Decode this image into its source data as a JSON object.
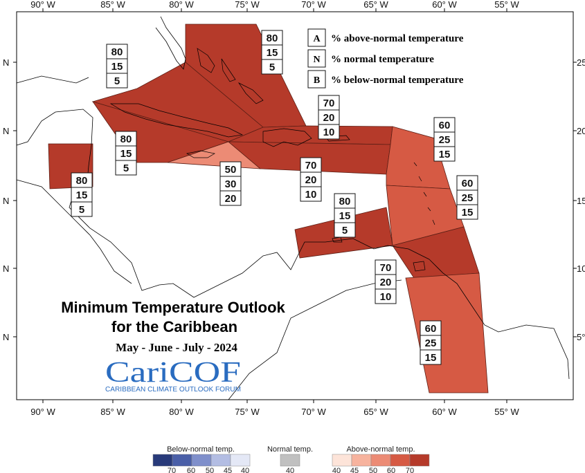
{
  "map": {
    "lon_ticks": [
      "90° W",
      "85° W",
      "80° W",
      "75° W",
      "70° W",
      "65° W",
      "60° W",
      "55° W"
    ],
    "lat_ticks_left": [
      "N",
      "N",
      "N",
      "N",
      "N"
    ],
    "lat_ticks_right": [
      "25°",
      "20°",
      "15°",
      "10°",
      "5°"
    ]
  },
  "legend_key": [
    {
      "key": "A",
      "text": "% above-normal temperature"
    },
    {
      "key": "N",
      "text": "% normal temperature"
    },
    {
      "key": "B",
      "text": "% below-normal temperature"
    }
  ],
  "regions": [
    {
      "name": "bahamas",
      "probs": [
        "80",
        "15",
        "5"
      ],
      "fill": "#b53a2a"
    },
    {
      "name": "cuba",
      "probs": [
        "80",
        "15",
        "5"
      ],
      "fill": "#b53a2a"
    },
    {
      "name": "cayman",
      "probs": [
        "80",
        "15",
        "5"
      ],
      "fill": "#b53a2a"
    },
    {
      "name": "belize",
      "probs": [
        "80",
        "15",
        "5"
      ],
      "fill": "#b53a2a"
    },
    {
      "name": "jamaica",
      "probs": [
        "50",
        "30",
        "20"
      ],
      "fill": "#ec8b75"
    },
    {
      "name": "hispaniola-north",
      "probs": [
        "70",
        "20",
        "10"
      ],
      "fill": "#b53a2a"
    },
    {
      "name": "hispaniola-south",
      "probs": [
        "70",
        "20",
        "10"
      ],
      "fill": "#b53a2a"
    },
    {
      "name": "leeward",
      "probs": [
        "60",
        "25",
        "15"
      ],
      "fill": "#d65a44"
    },
    {
      "name": "windward",
      "probs": [
        "60",
        "25",
        "15"
      ],
      "fill": "#d65a44"
    },
    {
      "name": "abc",
      "probs": [
        "80",
        "15",
        "5"
      ],
      "fill": "#b53a2a"
    },
    {
      "name": "trinidad",
      "probs": [
        "70",
        "20",
        "10"
      ],
      "fill": "#b53a2a"
    },
    {
      "name": "guianas",
      "probs": [
        "60",
        "25",
        "15"
      ],
      "fill": "#d65a44"
    }
  ],
  "title": {
    "line1": "Minimum Temperature Outlook",
    "line2": "for the Caribbean",
    "period": "May - June - July - 2024"
  },
  "logo": {
    "name": "CariCOF",
    "subtitle": "CARIBBEAN CLIMATE OUTLOOK FORUM"
  },
  "colorbar": {
    "below": {
      "title": "Below-normal temp.",
      "ticks": [
        "70",
        "60",
        "50",
        "45",
        "40"
      ],
      "colors": [
        "#283a7a",
        "#4a5fa8",
        "#7f8fcb",
        "#b3bde3",
        "#e4e8f6"
      ]
    },
    "normal": {
      "title": "Normal temp.",
      "ticks": [
        "40"
      ],
      "colors": [
        "#c0c0c0"
      ]
    },
    "above": {
      "title": "Above-normal temp.",
      "ticks": [
        "40",
        "45",
        "50",
        "60",
        "70"
      ],
      "colors": [
        "#fde4d9",
        "#f7b39e",
        "#ec8b75",
        "#d65a44",
        "#b53a2a"
      ]
    }
  }
}
